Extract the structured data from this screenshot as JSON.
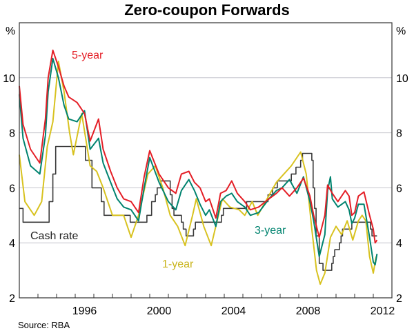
{
  "chart_data": {
    "type": "line",
    "title": "Zero-coupon Forwards",
    "ylabel_left": "%",
    "ylabel_right": "%",
    "xlim": [
      1993,
      2013
    ],
    "ylim": [
      2,
      12
    ],
    "yticks": [
      2,
      4,
      6,
      8,
      10
    ],
    "xtick_labels": [
      "1996",
      "2000",
      "2004",
      "2008",
      "2012"
    ],
    "grid": true,
    "source": "Source: RBA",
    "series": [
      {
        "name": "5-year",
        "color": "#e41e26",
        "style": "line",
        "points": [
          [
            1993.0,
            9.7
          ],
          [
            1993.2,
            8.3
          ],
          [
            1993.6,
            7.4
          ],
          [
            1994.1,
            6.9
          ],
          [
            1994.4,
            8.5
          ],
          [
            1994.55,
            10.0
          ],
          [
            1994.8,
            11.0
          ],
          [
            1995.1,
            10.4
          ],
          [
            1995.4,
            9.7
          ],
          [
            1995.65,
            9.3
          ],
          [
            1996.1,
            9.1
          ],
          [
            1996.5,
            8.7
          ],
          [
            1996.8,
            7.7
          ],
          [
            1997.25,
            8.5
          ],
          [
            1997.5,
            7.4
          ],
          [
            1997.9,
            6.6
          ],
          [
            1998.25,
            6.0
          ],
          [
            1998.6,
            5.6
          ],
          [
            1999.0,
            5.5
          ],
          [
            1999.4,
            5.1
          ],
          [
            1999.7,
            6.4
          ],
          [
            2000.0,
            7.35
          ],
          [
            2000.5,
            6.5
          ],
          [
            2001.0,
            6.0
          ],
          [
            2001.4,
            5.8
          ],
          [
            2001.7,
            6.5
          ],
          [
            2002.1,
            6.6
          ],
          [
            2002.4,
            6.2
          ],
          [
            2002.7,
            6.0
          ],
          [
            2003.0,
            5.5
          ],
          [
            2003.2,
            5.6
          ],
          [
            2003.55,
            4.9
          ],
          [
            2003.8,
            5.8
          ],
          [
            2004.1,
            5.9
          ],
          [
            2004.4,
            6.25
          ],
          [
            2004.7,
            5.8
          ],
          [
            2005.1,
            5.5
          ],
          [
            2005.4,
            5.2
          ],
          [
            2005.85,
            5.3
          ],
          [
            2006.4,
            5.6
          ],
          [
            2006.8,
            5.8
          ],
          [
            2007.1,
            6.0
          ],
          [
            2007.5,
            5.7
          ],
          [
            2007.9,
            6.0
          ],
          [
            2008.25,
            6.35
          ],
          [
            2008.6,
            5.7
          ],
          [
            2008.8,
            5.0
          ],
          [
            2009.1,
            4.2
          ],
          [
            2009.4,
            5.0
          ],
          [
            2009.55,
            6.1
          ],
          [
            2009.8,
            5.8
          ],
          [
            2010.1,
            5.5
          ],
          [
            2010.5,
            5.9
          ],
          [
            2010.7,
            5.7
          ],
          [
            2010.85,
            5.0
          ],
          [
            2011.0,
            5.1
          ],
          [
            2011.2,
            5.7
          ],
          [
            2011.5,
            5.85
          ],
          [
            2011.8,
            5.0
          ],
          [
            2012.0,
            4.5
          ],
          [
            2012.1,
            4.0
          ],
          [
            2012.2,
            4.1
          ]
        ]
      },
      {
        "name": "3-year",
        "color": "#00836f",
        "style": "line",
        "points": [
          [
            1993.0,
            9.4
          ],
          [
            1993.2,
            7.8
          ],
          [
            1993.6,
            6.8
          ],
          [
            1994.1,
            6.5
          ],
          [
            1994.4,
            7.9
          ],
          [
            1994.55,
            9.5
          ],
          [
            1994.8,
            10.7
          ],
          [
            1995.1,
            10.0
          ],
          [
            1995.4,
            9.0
          ],
          [
            1995.65,
            8.5
          ],
          [
            1996.1,
            8.4
          ],
          [
            1996.5,
            8.8
          ],
          [
            1996.8,
            7.4
          ],
          [
            1997.25,
            7.8
          ],
          [
            1997.5,
            6.9
          ],
          [
            1997.9,
            6.2
          ],
          [
            1998.25,
            5.6
          ],
          [
            1998.6,
            5.3
          ],
          [
            1999.0,
            5.2
          ],
          [
            1999.4,
            4.8
          ],
          [
            1999.7,
            6.0
          ],
          [
            2000.0,
            7.1
          ],
          [
            2000.5,
            6.2
          ],
          [
            2001.0,
            5.5
          ],
          [
            2001.4,
            5.2
          ],
          [
            2001.7,
            5.9
          ],
          [
            2002.1,
            6.3
          ],
          [
            2002.4,
            5.9
          ],
          [
            2002.7,
            5.4
          ],
          [
            2003.0,
            5.0
          ],
          [
            2003.2,
            5.2
          ],
          [
            2003.55,
            4.6
          ],
          [
            2003.8,
            5.5
          ],
          [
            2004.1,
            5.7
          ],
          [
            2004.4,
            5.8
          ],
          [
            2004.7,
            5.5
          ],
          [
            2005.1,
            5.3
          ],
          [
            2005.4,
            5.0
          ],
          [
            2005.85,
            5.1
          ],
          [
            2006.4,
            5.6
          ],
          [
            2006.8,
            5.9
          ],
          [
            2007.1,
            6.0
          ],
          [
            2007.5,
            6.3
          ],
          [
            2007.9,
            5.8
          ],
          [
            2008.25,
            6.4
          ],
          [
            2008.6,
            5.5
          ],
          [
            2008.8,
            4.8
          ],
          [
            2009.1,
            3.5
          ],
          [
            2009.4,
            4.3
          ],
          [
            2009.55,
            5.9
          ],
          [
            2009.7,
            6.4
          ],
          [
            2009.8,
            5.6
          ],
          [
            2010.1,
            5.3
          ],
          [
            2010.5,
            5.5
          ],
          [
            2010.7,
            5.2
          ],
          [
            2010.85,
            4.7
          ],
          [
            2011.0,
            4.9
          ],
          [
            2011.2,
            5.4
          ],
          [
            2011.5,
            5.4
          ],
          [
            2011.8,
            4.2
          ],
          [
            2012.0,
            3.3
          ],
          [
            2012.1,
            3.2
          ],
          [
            2012.2,
            3.6
          ]
        ]
      },
      {
        "name": "1-year",
        "color": "#d8c21f",
        "style": "line",
        "points": [
          [
            1993.0,
            7.2
          ],
          [
            1993.3,
            5.5
          ],
          [
            1993.8,
            5.0
          ],
          [
            1994.2,
            5.5
          ],
          [
            1994.5,
            7.5
          ],
          [
            1994.8,
            8.4
          ],
          [
            1995.1,
            10.6
          ],
          [
            1995.4,
            9.5
          ],
          [
            1995.7,
            8.0
          ],
          [
            1995.9,
            7.2
          ],
          [
            1996.35,
            8.7
          ],
          [
            1996.8,
            6.8
          ],
          [
            1997.15,
            6.6
          ],
          [
            1997.5,
            6.0
          ],
          [
            1998.0,
            5.0
          ],
          [
            1998.6,
            5.0
          ],
          [
            1999.0,
            4.2
          ],
          [
            1999.4,
            5.0
          ],
          [
            1999.9,
            6.5
          ],
          [
            2000.3,
            6.8
          ],
          [
            2000.7,
            6.0
          ],
          [
            2001.1,
            5.0
          ],
          [
            2001.5,
            4.6
          ],
          [
            2001.9,
            3.9
          ],
          [
            2002.3,
            5.0
          ],
          [
            2002.5,
            5.6
          ],
          [
            2002.9,
            4.6
          ],
          [
            2003.3,
            3.9
          ],
          [
            2003.9,
            5.6
          ],
          [
            2004.3,
            5.3
          ],
          [
            2004.8,
            5.2
          ],
          [
            2005.1,
            5.0
          ],
          [
            2005.5,
            5.5
          ],
          [
            2005.8,
            5.0
          ],
          [
            2006.3,
            5.6
          ],
          [
            2006.8,
            6.2
          ],
          [
            2007.2,
            6.5
          ],
          [
            2007.6,
            6.8
          ],
          [
            2008.1,
            7.3
          ],
          [
            2008.4,
            6.5
          ],
          [
            2008.7,
            4.5
          ],
          [
            2008.95,
            3.0
          ],
          [
            2009.15,
            2.5
          ],
          [
            2009.4,
            2.9
          ],
          [
            2009.7,
            4.2
          ],
          [
            2010.0,
            4.6
          ],
          [
            2010.3,
            4.3
          ],
          [
            2010.6,
            4.8
          ],
          [
            2010.9,
            4.1
          ],
          [
            2011.2,
            4.8
          ],
          [
            2011.4,
            5.0
          ],
          [
            2011.6,
            4.8
          ],
          [
            2011.8,
            3.5
          ],
          [
            2012.0,
            2.9
          ],
          [
            2012.15,
            3.5
          ]
        ]
      },
      {
        "name": "Cash rate",
        "color": "#3a3a3a",
        "style": "step",
        "points": [
          [
            1993.0,
            5.25
          ],
          [
            1993.2,
            4.75
          ],
          [
            1994.6,
            5.5
          ],
          [
            1994.8,
            6.5
          ],
          [
            1994.95,
            7.5
          ],
          [
            1996.55,
            7.0
          ],
          [
            1996.9,
            6.0
          ],
          [
            1997.4,
            5.5
          ],
          [
            1997.55,
            5.0
          ],
          [
            1998.95,
            4.75
          ],
          [
            1999.85,
            5.0
          ],
          [
            2000.1,
            5.5
          ],
          [
            2000.3,
            5.75
          ],
          [
            2000.4,
            6.0
          ],
          [
            2000.6,
            6.25
          ],
          [
            2001.1,
            5.75
          ],
          [
            2001.2,
            5.25
          ],
          [
            2001.3,
            5.0
          ],
          [
            2001.7,
            4.75
          ],
          [
            2001.8,
            4.5
          ],
          [
            2001.95,
            4.25
          ],
          [
            2002.35,
            4.5
          ],
          [
            2002.45,
            4.75
          ],
          [
            2003.85,
            5.0
          ],
          [
            2003.95,
            5.25
          ],
          [
            2005.2,
            5.5
          ],
          [
            2006.35,
            5.75
          ],
          [
            2006.6,
            6.0
          ],
          [
            2006.85,
            6.25
          ],
          [
            2007.6,
            6.5
          ],
          [
            2007.85,
            6.75
          ],
          [
            2008.1,
            7.0
          ],
          [
            2008.2,
            7.25
          ],
          [
            2008.7,
            7.0
          ],
          [
            2008.77,
            6.0
          ],
          [
            2008.85,
            5.25
          ],
          [
            2008.93,
            4.25
          ],
          [
            2009.1,
            3.25
          ],
          [
            2009.3,
            3.0
          ],
          [
            2009.77,
            3.25
          ],
          [
            2009.85,
            3.5
          ],
          [
            2009.93,
            3.75
          ],
          [
            2010.18,
            4.0
          ],
          [
            2010.27,
            4.25
          ],
          [
            2010.35,
            4.5
          ],
          [
            2010.85,
            4.75
          ],
          [
            2011.85,
            4.5
          ],
          [
            2011.93,
            4.25
          ],
          [
            2012.2,
            4.25
          ]
        ]
      }
    ],
    "annotations": {
      "five_year": "5-year",
      "three_year": "3-year",
      "one_year": "1-year",
      "cash_rate": "Cash rate"
    }
  }
}
